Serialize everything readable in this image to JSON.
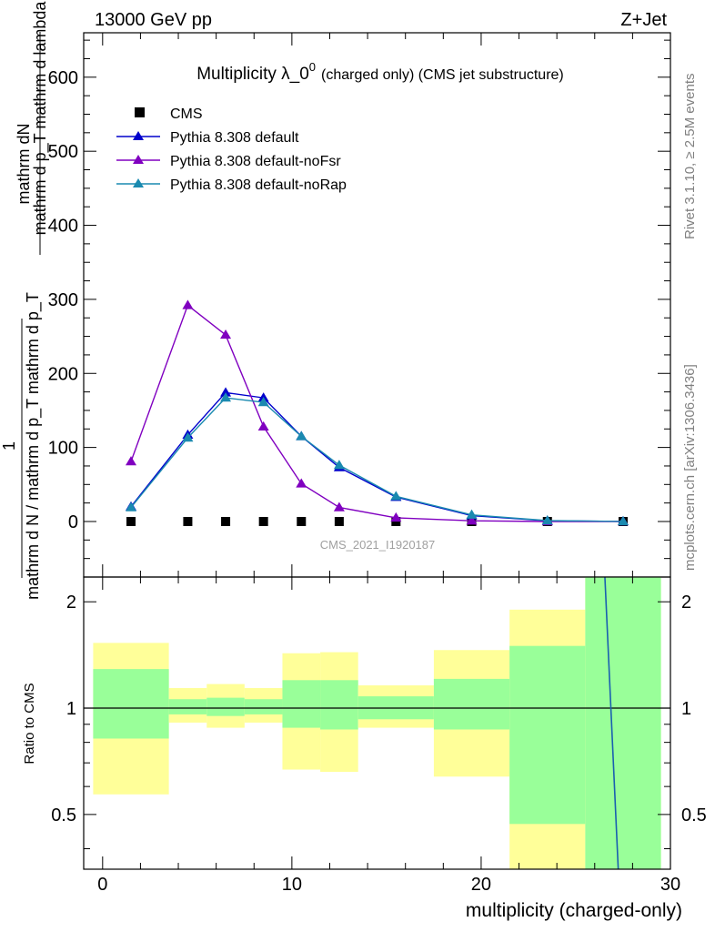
{
  "header": {
    "energy_label": "13000 GeV pp",
    "process_label": "Z+Jet"
  },
  "side_text": {
    "rivet": "Rivet 3.1.10, ≥ 2.5M events",
    "mcplots": "mcplots.cern.ch [arXiv:1306.3436]"
  },
  "watermark": "CMS_2021_I1920187",
  "chart_data": [
    {
      "type": "scatter",
      "title": "Multiplicity λ_0^0 (charged only) (CMS jet substructure)",
      "title_main": "Multiplicity λ_0",
      "title_sup": "0",
      "title_suffix": "(charged only) (CMS jet substructure)",
      "ylabel_top": "mathrm dN",
      "ylabel_top_line2": "mathrm d p_T mathrm d lambda",
      "ylabel_num": "1",
      "ylabel_bottom": "mathrm d N / mathrm d p_T mathrm d p_T",
      "xlim": [
        -1,
        30
      ],
      "ylim": [
        -75,
        660
      ],
      "yticks": [
        0,
        100,
        200,
        300,
        400,
        500,
        600
      ],
      "legend_position": "top-left",
      "series": [
        {
          "name": "CMS",
          "marker": "square",
          "color": "#000000",
          "x": [
            1.5,
            4.5,
            6.5,
            8.5,
            10.5,
            12.5,
            15.5,
            19.5,
            23.5,
            27.5
          ],
          "y": [
            0,
            0,
            0,
            0,
            0,
            0,
            0,
            0,
            0,
            0
          ]
        },
        {
          "name": "Pythia 8.308 default",
          "marker": "triangle",
          "color": "#0000cc",
          "x": [
            1.5,
            4.5,
            6.5,
            8.5,
            10.5,
            12.5,
            15.5,
            19.5,
            23.5,
            27.5
          ],
          "y": [
            20,
            117,
            174,
            167,
            115,
            73,
            33,
            8,
            1,
            0.1
          ]
        },
        {
          "name": "Pythia 8.308 default-noFsr",
          "marker": "triangle",
          "color": "#8000c0",
          "x": [
            1.5,
            4.5,
            6.5,
            8.5,
            10.5,
            12.5,
            15.5,
            19.5,
            23.5,
            27.5
          ],
          "y": [
            81,
            292,
            252,
            128,
            51,
            19,
            5,
            1,
            0,
            0
          ]
        },
        {
          "name": "Pythia 8.308 default-noRap",
          "marker": "triangle",
          "color": "#1a8ab0",
          "x": [
            1.5,
            4.5,
            6.5,
            8.5,
            10.5,
            12.5,
            15.5,
            19.5,
            23.5,
            27.5
          ],
          "y": [
            19,
            113,
            167,
            161,
            115,
            76,
            34,
            9,
            1.2,
            0.1
          ]
        }
      ]
    },
    {
      "type": "area",
      "ylabel": "Ratio to CMS",
      "xlabel": "multiplicity (charged-only)",
      "xlim": [
        -1,
        30
      ],
      "ylim": [
        0.35,
        2.35
      ],
      "yticks": [
        0.5,
        1,
        2
      ],
      "xticks": [
        0,
        10,
        20,
        30
      ],
      "bins": [
        {
          "lo": -0.5,
          "hi": 3.5,
          "green": [
            0.82,
            1.29
          ],
          "yellow": [
            0.57,
            1.53
          ]
        },
        {
          "lo": 3.5,
          "hi": 5.5,
          "green": [
            0.96,
            1.06
          ],
          "yellow": [
            0.91,
            1.14
          ]
        },
        {
          "lo": 5.5,
          "hi": 7.5,
          "green": [
            0.95,
            1.07
          ],
          "yellow": [
            0.88,
            1.17
          ]
        },
        {
          "lo": 7.5,
          "hi": 9.5,
          "green": [
            0.96,
            1.06
          ],
          "yellow": [
            0.91,
            1.14
          ]
        },
        {
          "lo": 9.5,
          "hi": 11.5,
          "green": [
            0.88,
            1.2
          ],
          "yellow": [
            0.67,
            1.43
          ]
        },
        {
          "lo": 11.5,
          "hi": 13.5,
          "green": [
            0.87,
            1.2
          ],
          "yellow": [
            0.66,
            1.44
          ]
        },
        {
          "lo": 13.5,
          "hi": 17.5,
          "green": [
            0.93,
            1.08
          ],
          "yellow": [
            0.88,
            1.16
          ]
        },
        {
          "lo": 17.5,
          "hi": 21.5,
          "green": [
            0.87,
            1.21
          ],
          "yellow": [
            0.64,
            1.46
          ]
        },
        {
          "lo": 21.5,
          "hi": 25.5,
          "green": [
            0.47,
            1.5
          ],
          "yellow": [
            0.2,
            1.9
          ]
        },
        {
          "lo": 25.5,
          "hi": 29.5,
          "green": [
            0.2,
            2.6
          ],
          "yellow": [
            0.2,
            2.6
          ]
        }
      ],
      "ratio_line": {
        "color": "#1a5fb0",
        "x": [
          26.5,
          27.3
        ],
        "y": [
          2.6,
          0.3
        ]
      }
    }
  ]
}
